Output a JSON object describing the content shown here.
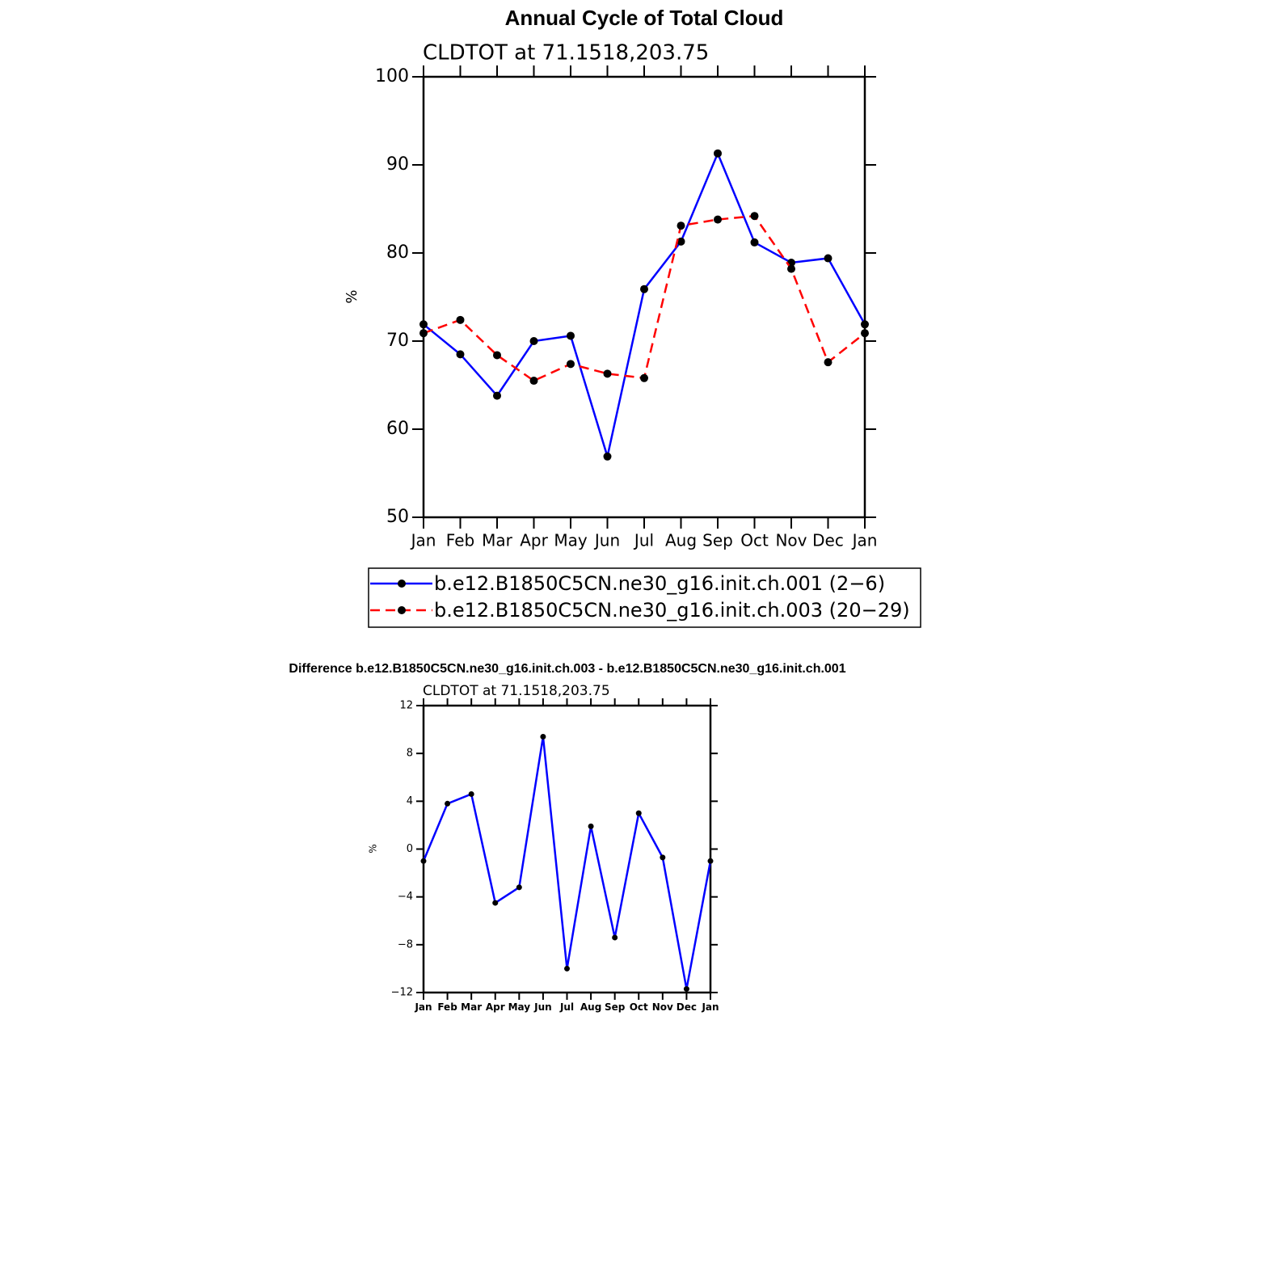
{
  "chart_data": [
    {
      "type": "line",
      "title": "Annual Cycle of Total Cloud",
      "subtitle": "CLDTOT at 71.1518,203.75",
      "y_label": "%",
      "categories": [
        "Jan",
        "Feb",
        "Mar",
        "Apr",
        "May",
        "Jun",
        "Jul",
        "Aug",
        "Sep",
        "Oct",
        "Nov",
        "Dec",
        "Jan"
      ],
      "series": [
        {
          "name": "b.e12.B1850C5CN.ne30_g16.init.ch.001 (2−6)",
          "color": "#0000ff",
          "dash": false,
          "values": [
            71.9,
            68.5,
            63.8,
            70.0,
            70.6,
            56.9,
            75.9,
            81.3,
            91.3,
            81.2,
            78.9,
            79.4,
            71.9
          ]
        },
        {
          "name": "b.e12.B1850C5CN.ne30_g16.init.ch.003 (20−29)",
          "color": "#ff0000",
          "dash": true,
          "values": [
            70.9,
            72.4,
            68.4,
            65.5,
            67.4,
            66.3,
            65.8,
            83.1,
            83.8,
            84.2,
            78.2,
            67.6,
            70.9
          ]
        }
      ],
      "ylim": [
        50,
        100
      ],
      "yticks": [
        50,
        60,
        70,
        80,
        90,
        100
      ],
      "legend": "bottom"
    },
    {
      "type": "line",
      "title": "Difference b.e12.B1850C5CN.ne30_g16.init.ch.003 - b.e12.B1850C5CN.ne30_g16.init.ch.001",
      "subtitle": "CLDTOT at 71.1518,203.75",
      "y_label": "%",
      "categories": [
        "Jan",
        "Feb",
        "Mar",
        "Apr",
        "May",
        "Jun",
        "Jul",
        "Aug",
        "Sep",
        "Oct",
        "Nov",
        "Dec",
        "Jan"
      ],
      "color": "#0000ff",
      "values": [
        -1.0,
        3.8,
        4.6,
        -4.5,
        -3.2,
        9.4,
        -10.0,
        1.9,
        -7.4,
        3.0,
        -0.7,
        -11.7,
        -1.0
      ],
      "ylim": [
        -12,
        12
      ],
      "yticks": [
        {
          "value": -12,
          "label": "−12"
        },
        {
          "value": -8,
          "label": "−8"
        },
        {
          "value": -4,
          "label": "−4"
        },
        0,
        4,
        8,
        12
      ]
    }
  ]
}
